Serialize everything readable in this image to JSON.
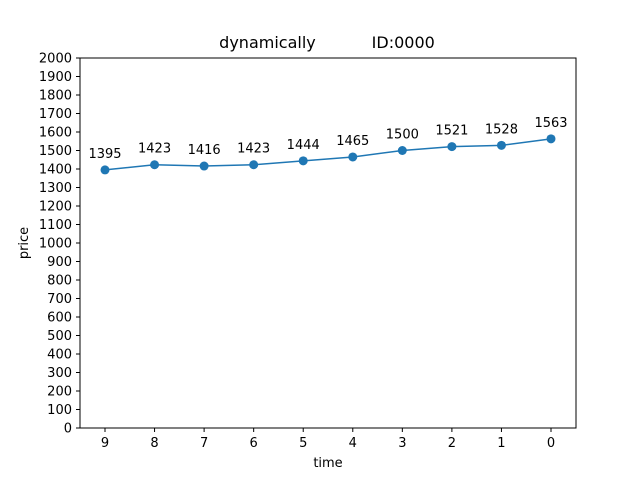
{
  "chart_data": {
    "type": "line",
    "title": "dynamically           ID:0000",
    "xlabel": "time",
    "ylabel": "price",
    "categories": [
      "9",
      "8",
      "7",
      "6",
      "5",
      "4",
      "3",
      "2",
      "1",
      "0"
    ],
    "values": [
      1395,
      1423,
      1416,
      1423,
      1444,
      1465,
      1500,
      1521,
      1528,
      1563
    ],
    "data_labels": [
      "1395",
      "1423",
      "1416",
      "1423",
      "1444",
      "1465",
      "1500",
      "1521",
      "1528",
      "1563"
    ],
    "ylim": [
      0,
      2000
    ],
    "y_ticks": [
      "0",
      "100",
      "200",
      "300",
      "400",
      "500",
      "600",
      "700",
      "800",
      "900",
      "1000",
      "1100",
      "1200",
      "1300",
      "1400",
      "1500",
      "1600",
      "1700",
      "1800",
      "1900",
      "2000"
    ],
    "grid": false,
    "legend": false,
    "color": "#1f77b4"
  }
}
